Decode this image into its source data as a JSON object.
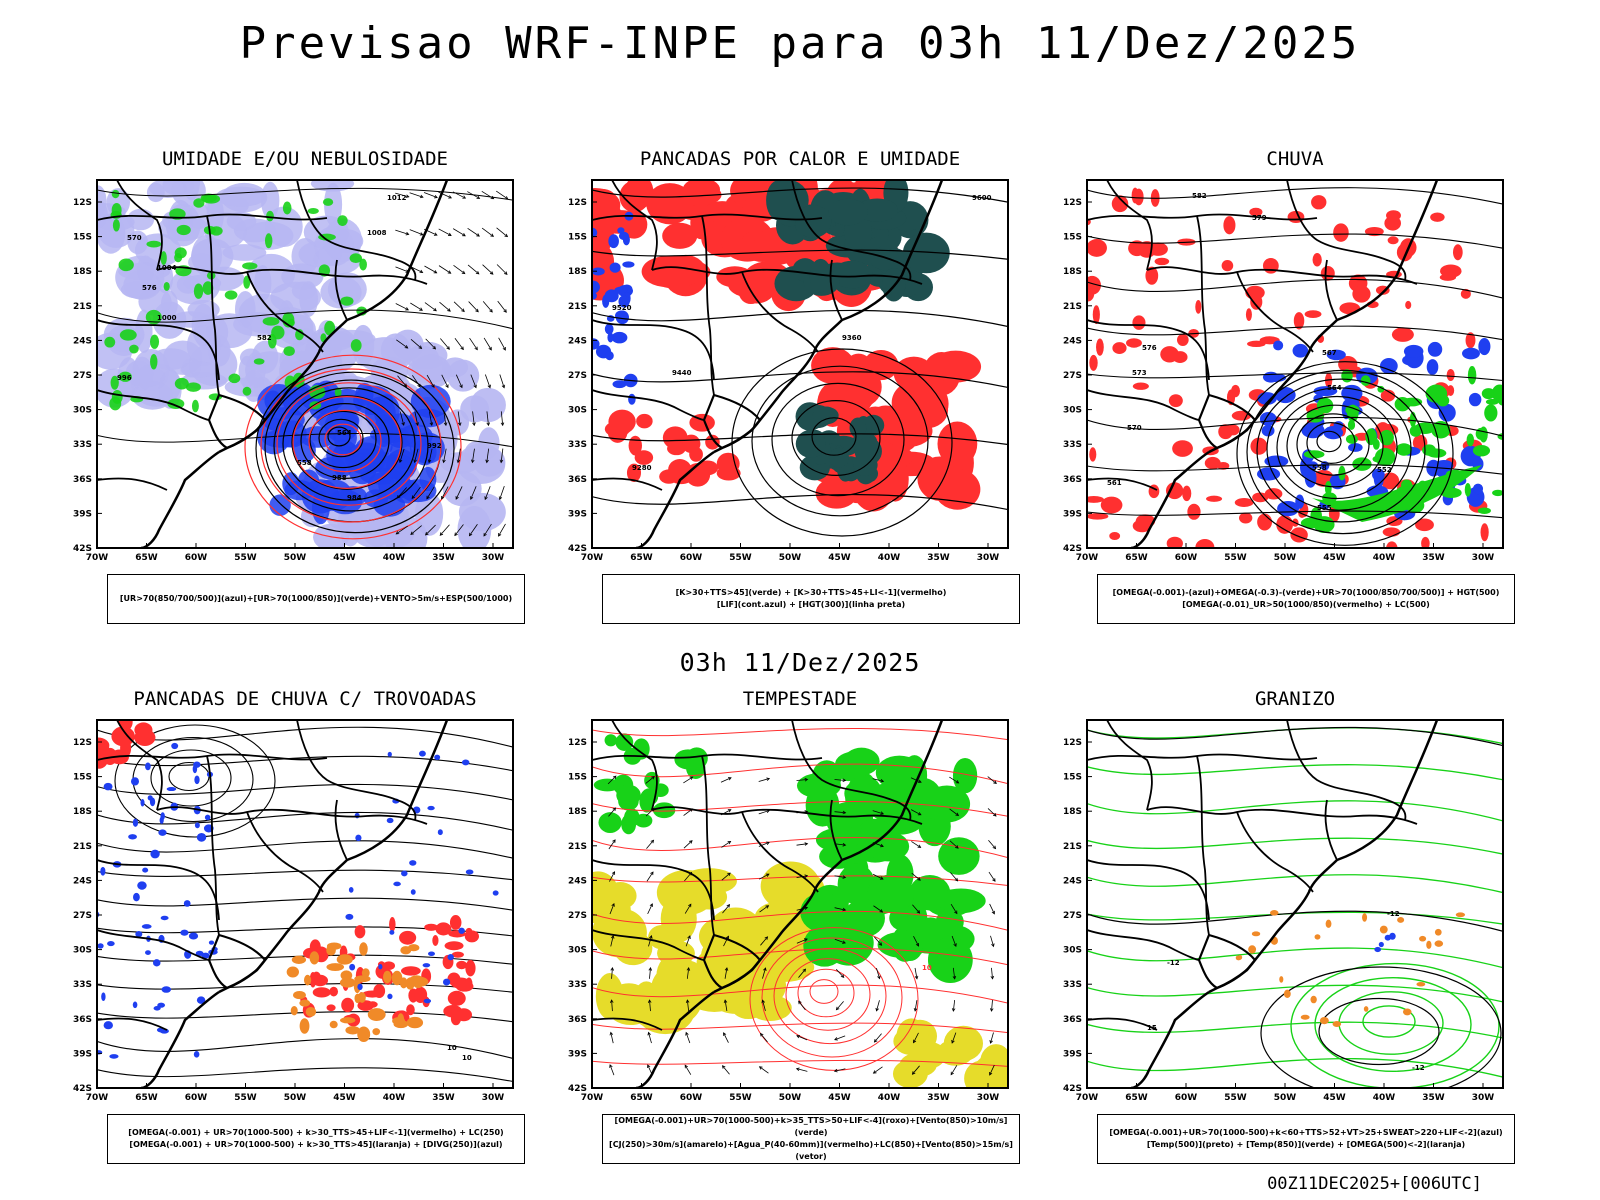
{
  "title": "Previsao WRF-INPE  para 03h 11/Dez/2025",
  "mid_title": "03h 11/Dez/2025",
  "footer": "00Z11DEC2025+[006UTC]",
  "axes": {
    "lat_labels": [
      "12S",
      "15S",
      "18S",
      "21S",
      "24S",
      "27S",
      "30S",
      "33S",
      "36S",
      "39S",
      "42S"
    ],
    "lon_labels": [
      "70W",
      "65W",
      "60W",
      "55W",
      "50W",
      "45W",
      "40W",
      "35W",
      "30W"
    ]
  },
  "colors": {
    "blue": "#1f3ff0",
    "lightblue": "#b6b6f2",
    "green": "#18d218",
    "red": "#ff3030",
    "darkgreen": "#1f4f4f",
    "yellow": "#e6dc2a",
    "orange": "#f08a28"
  },
  "panels": [
    {
      "title": "UMIDADE E/OU NEBULOSIDADE",
      "legend_line1": "[UR>70(850/700/500)](azul)+[UR>70(1000/850)](verde)+VENTO>5m/s+ESP(500/1000)",
      "legend_line2": "",
      "contour_labels": [
        "1012",
        "1008",
        "1004",
        "1000",
        "996",
        "992",
        "988",
        "984",
        "570",
        "576",
        "582",
        "564",
        "558"
      ]
    },
    {
      "title": "PANCADAS POR CALOR E UMIDADE",
      "legend_line1": "[K>30+TTS>45](verde) + [K>30+TTS>45+LI<-1](vermelho)",
      "legend_line2": "[LIF](cont.azul) + [HGT(300)](linha preta)",
      "contour_labels": [
        "9600",
        "9520",
        "9440",
        "9360",
        "9280"
      ]
    },
    {
      "title": "CHUVA",
      "legend_line1": "[OMEGA(-0.001)-(azul)+OMEGA(-0.3)-(verde)+UR>70(1000/850/700/500)] + HGT(500)",
      "legend_line2": "[OMEGA(-0.01)_UR>50(1000/850)(vermelho) + LC(500)",
      "contour_labels": [
        "582",
        "579",
        "576",
        "573",
        "570",
        "567",
        "564",
        "561",
        "558",
        "555",
        "552"
      ]
    },
    {
      "title": "PANCADAS DE CHUVA C/ TROVOADAS",
      "legend_line1": "[OMEGA(-0.001) + UR>70(1000-500) + k>30_TTS>45+LIF<-1](vermelho) + LC(250)",
      "legend_line2": "[OMEGA(-0.001) + UR>70(1000-500) + k>30_TTS>45](laranja) + [DIVG(250)](azul)",
      "contour_labels": [
        "10",
        "10"
      ]
    },
    {
      "title": "TEMPESTADE",
      "legend_line1": "[OMEGA(-0.001)+UR>70(1000-500)+k>35_TTS>50+LIF<-4](roxo)+[Vento(850)>10m/s](verde)",
      "legend_line2": "[CJ(250)>30m/s](amarelo)+[Agua_P(40-60mm)](vermelho)+LC(850)+[Vento(850)>15m/s](vetor)",
      "contour_labels": [
        "10"
      ]
    },
    {
      "title": "GRANIZO",
      "legend_line1": "[OMEGA(-0.001)+UR>70(1000-500)+k<60+TTS>52+VT>25+SWEAT>220+LIF<-2](azul)",
      "legend_line2": "[Temp(500)](preto) + [Temp(850)](verde) + [OMEGA(500)<-2](laranja)",
      "contour_labels": [
        "-12",
        "-12",
        "15",
        "-12"
      ]
    }
  ]
}
